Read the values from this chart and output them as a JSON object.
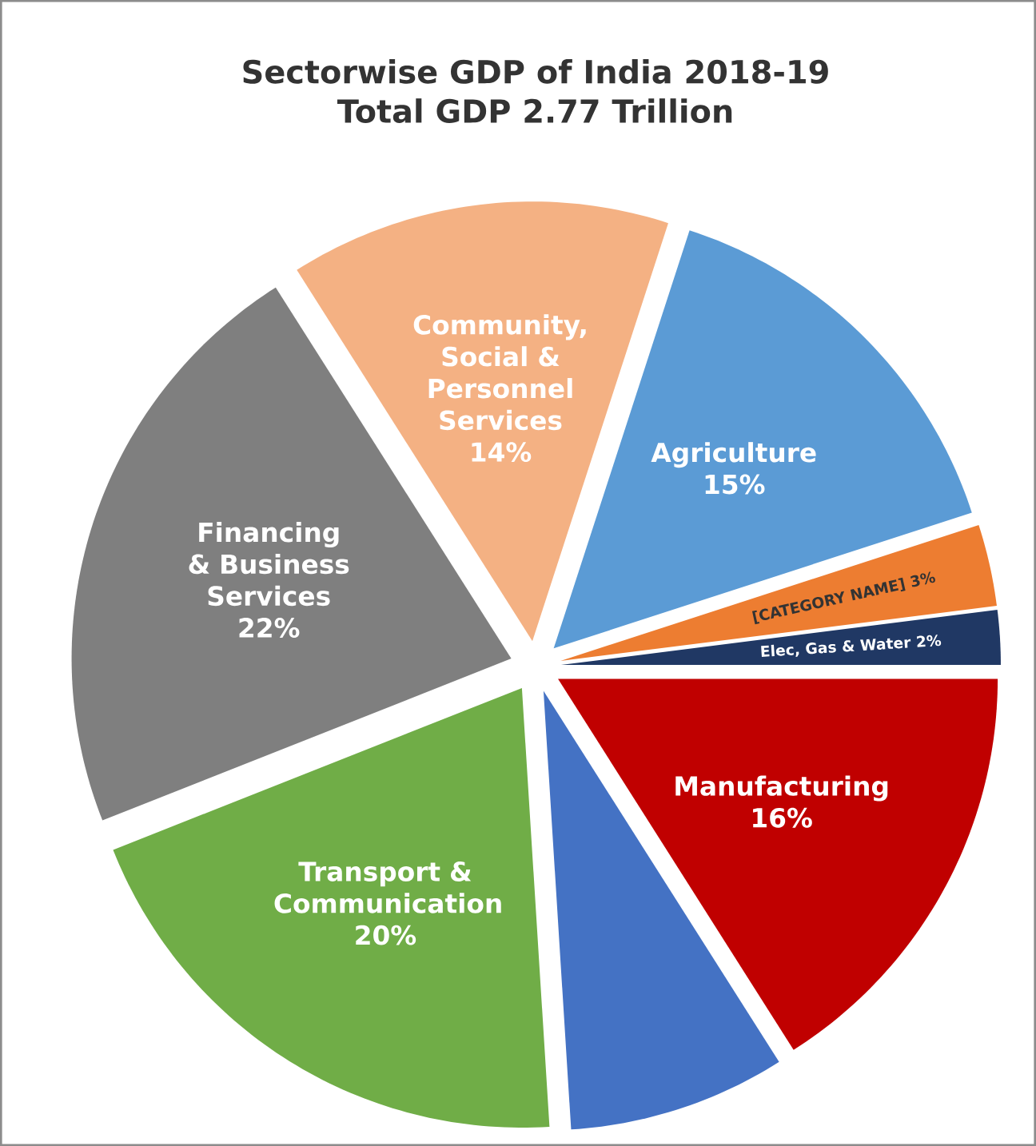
{
  "chart_data": {
    "type": "pie",
    "title": "Sectorwise GDP of India 2018-19",
    "subtitle": "Total GDP 2.77 Trillion",
    "categories": [
      "Agriculture",
      "[CATEGORY NAME]",
      "Elec, Gas & Water",
      "Manufacturing",
      null,
      "Transport & Communication",
      "Financing & Business Services",
      "Community, Social & Personnel Services"
    ],
    "values": [
      15,
      3,
      2,
      16,
      8,
      20,
      22,
      14
    ],
    "value_labels": [
      "15%",
      "3%",
      "2%",
      "16%",
      null,
      "20%",
      "22%",
      "14%"
    ],
    "colors": [
      "#5b9bd5",
      "#ed7d31",
      "#203864",
      "#c00000",
      "#4472c4",
      "#70ad47",
      "#7f7f7f",
      "#f4b183"
    ]
  }
}
